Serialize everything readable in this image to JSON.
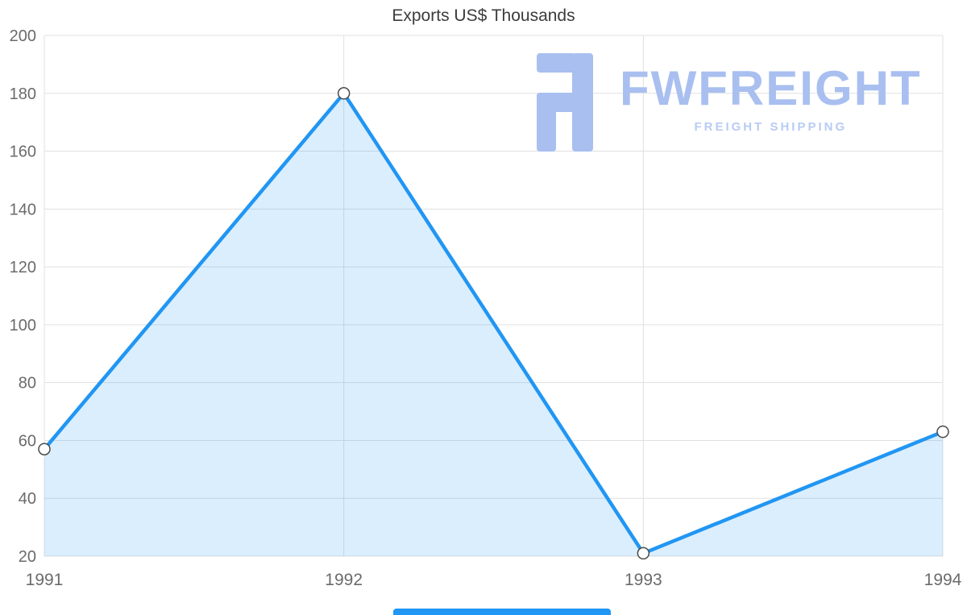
{
  "page": {
    "title": "Exports US$ Thousands"
  },
  "watermark": {
    "brand": "FWFREIGHT",
    "tagline": "FREIGHT SHIPPING",
    "color": "#a9bff0"
  },
  "bottom_bar": {
    "color": "#2196f3"
  },
  "chart_data": {
    "type": "area",
    "categories": [
      "1991",
      "1992",
      "1993",
      "1994"
    ],
    "values": [
      57,
      180,
      21,
      63
    ],
    "series": [
      {
        "name": "Exports US$ Thousands",
        "values": [
          57,
          180,
          21,
          63
        ]
      }
    ],
    "title": "Exports US$ Thousands",
    "xlabel": "",
    "ylabel": "",
    "ylim": [
      20,
      200
    ],
    "yticks": [
      20,
      40,
      60,
      80,
      100,
      120,
      140,
      160,
      180,
      200
    ],
    "grid": true,
    "legend": false,
    "colors": {
      "line": "#2196f3",
      "fill": "rgba(33, 150, 243, 0.16)",
      "grid": "#e0e0e0",
      "tick_text": "#6b6b6b",
      "marker_fill": "#ffffff",
      "marker_stroke": "#4a4a4a"
    }
  }
}
